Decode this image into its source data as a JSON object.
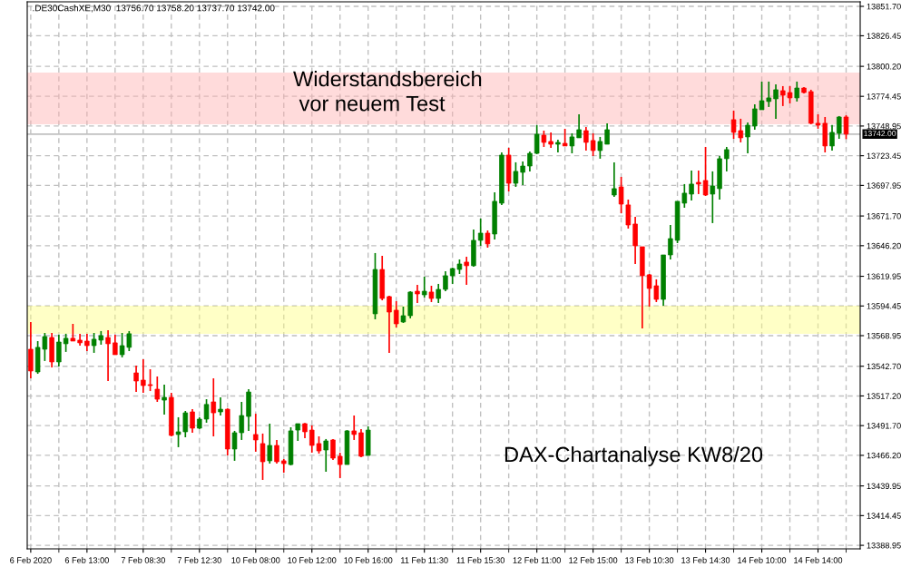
{
  "chart_data": {
    "type": "candlestick",
    "title": ".DE30CashXE,M30  13756.70 13758.20 13737.70 13742.00",
    "categories": [
      "6 Feb 2020",
      null,
      null,
      null,
      null,
      null,
      null,
      null,
      "6 Feb 13:00",
      null,
      null,
      null,
      null,
      null,
      null,
      null,
      "7 Feb 08:30",
      null,
      null,
      null,
      null,
      null,
      null,
      null,
      "7 Feb 12:30",
      null,
      null,
      null,
      null,
      null,
      null,
      null,
      "10 Feb 08:00",
      null,
      null,
      null,
      null,
      null,
      null,
      null,
      "10 Feb 12:00",
      null,
      null,
      null,
      null,
      null,
      null,
      null,
      "10 Feb 16:00",
      null,
      null,
      null,
      null,
      null,
      null,
      null,
      "11 Feb 11:30",
      null,
      null,
      null,
      null,
      null,
      null,
      null,
      "11 Feb 15:30",
      null,
      null,
      null,
      null,
      null,
      null,
      null,
      "12 Feb 11:00",
      null,
      null,
      null,
      null,
      null,
      null,
      null,
      "12 Feb 15:00",
      null,
      null,
      null,
      null,
      null,
      null,
      null,
      "13 Feb 10:30",
      null,
      null,
      null,
      null,
      null,
      null,
      null,
      "13 Feb 14:30",
      null,
      null,
      null,
      null,
      null,
      null,
      null,
      "14 Feb 10:00",
      null,
      null,
      null,
      null,
      null,
      null,
      null,
      "14 Feb 14:00",
      null,
      null,
      null,
      null
    ],
    "ohlc": [
      [
        13557.3,
        13580.7,
        13532.3,
        13538.6
      ],
      [
        13537.8,
        13564.3,
        13536.2,
        13558.9
      ],
      [
        13557.3,
        13571.3,
        13547.2,
        13568.2
      ],
      [
        13567.4,
        13571.3,
        13541.7,
        13546.4
      ],
      [
        13546.4,
        13569.8,
        13542.5,
        13563.5
      ],
      [
        13562.0,
        13570.6,
        13555.0,
        13566.7
      ],
      [
        13566.7,
        13579.1,
        13564.3,
        13564.3
      ],
      [
        13565.1,
        13570.6,
        13560.4,
        13562.8
      ],
      [
        13564.3,
        13570.6,
        13555.7,
        13560.4
      ],
      [
        13560.4,
        13571.3,
        13554.2,
        13565.9
      ],
      [
        13565.1,
        13572.9,
        13561.2,
        13569.0
      ],
      [
        13567.4,
        13573.7,
        13530.0,
        13562.0
      ],
      [
        13562.8,
        13569.8,
        13552.6,
        13552.6
      ],
      [
        13552.6,
        13571.3,
        13550.3,
        13560.4
      ],
      [
        13558.9,
        13572.9,
        13555.7,
        13570.6
      ],
      [
        13537.0,
        13543.3,
        13520.6,
        13530.0
      ],
      [
        13530.8,
        13548.7,
        13519.9,
        13526.1
      ],
      [
        13526.9,
        13540.1,
        13521.4,
        13526.1
      ],
      [
        13523.0,
        13533.9,
        13512.1,
        13514.4
      ],
      [
        13513.6,
        13526.9,
        13501.2,
        13516.0
      ],
      [
        13516.0,
        13519.9,
        13482.5,
        13483.3
      ],
      [
        13484.1,
        13498.9,
        13473.2,
        13486.4
      ],
      [
        13486.4,
        13504.3,
        13481.7,
        13502.7
      ],
      [
        13503.5,
        13505.8,
        13485.6,
        13489.5
      ],
      [
        13489.5,
        13498.9,
        13488.8,
        13497.3
      ],
      [
        13497.3,
        13514.4,
        13494.2,
        13509.9
      ],
      [
        13512.1,
        13532.3,
        13482.5,
        13502.7
      ],
      [
        13503.5,
        13516.0,
        13500.4,
        13505.8
      ],
      [
        13505.8,
        13506.5,
        13466.1,
        13471.6
      ],
      [
        13471.6,
        13487.2,
        13461.5,
        13485.6
      ],
      [
        13485.6,
        13512.1,
        13479.4,
        13500.4
      ],
      [
        13499.6,
        13523.0,
        13487.2,
        13520.6
      ],
      [
        13484.1,
        13501.9,
        13469.3,
        13479.4
      ],
      [
        13476.3,
        13484.9,
        13445.1,
        13460.7
      ],
      [
        13461.5,
        13493.4,
        13459.1,
        13474.7
      ],
      [
        13474.7,
        13479.4,
        13459.1,
        13460.7
      ],
      [
        13461.5,
        13463.0,
        13451.3,
        13459.1
      ],
      [
        13458.3,
        13490.3,
        13457.6,
        13487.2
      ],
      [
        13487.9,
        13493.4,
        13478.6,
        13493.4
      ],
      [
        13493.4,
        13494.0,
        13481.0,
        13486.4
      ],
      [
        13487.9,
        13491.9,
        13468.5,
        13474.7
      ],
      [
        13476.3,
        13482.5,
        13467.7,
        13470.0
      ],
      [
        13470.8,
        13480.2,
        13452.1,
        13478.6
      ],
      [
        13479.4,
        13480.2,
        13462.3,
        13463.8
      ],
      [
        13465.4,
        13468.5,
        13446.7,
        13458.3
      ],
      [
        13458.3,
        13487.9,
        13458.3,
        13487.2
      ],
      [
        13487.2,
        13500.4,
        13479.4,
        13484.1
      ],
      [
        13485.6,
        13488.8,
        13464.6,
        13465.4
      ],
      [
        13466.1,
        13491.1,
        13466.1,
        13487.9
      ],
      [
        13587.7,
        13639.9,
        13583.0,
        13625.8
      ],
      [
        13625.8,
        13637.5,
        13599.3,
        13600.9
      ],
      [
        13602.5,
        13603.3,
        13554.2,
        13589.2
      ],
      [
        13590.8,
        13598.6,
        13576.0,
        13579.1
      ],
      [
        13580.7,
        13593.9,
        13579.9,
        13586.1
      ],
      [
        13586.1,
        13607.1,
        13583.8,
        13606.4
      ],
      [
        13607.1,
        13612.6,
        13597.0,
        13604.8
      ],
      [
        13604.0,
        13619.6,
        13601.7,
        13607.1
      ],
      [
        13606.4,
        13611.8,
        13597.8,
        13600.9
      ],
      [
        13600.9,
        13613.4,
        13597.0,
        13608.7
      ],
      [
        13608.7,
        13624.3,
        13607.1,
        13620.4
      ],
      [
        13620.4,
        13627.4,
        13613.4,
        13626.6
      ],
      [
        13625.8,
        13634.4,
        13621.9,
        13630.5
      ],
      [
        13632.1,
        13636.7,
        13612.6,
        13629.0
      ],
      [
        13629.0,
        13660.1,
        13628.2,
        13650.8
      ],
      [
        13650.8,
        13669.5,
        13646.1,
        13657.0
      ],
      [
        13657.0,
        13659.3,
        13644.5,
        13647.7
      ],
      [
        13656.2,
        13692.0,
        13651.5,
        13684.3
      ],
      [
        13682.7,
        13726.3,
        13681.2,
        13724.0
      ],
      [
        13724.0,
        13730.2,
        13692.8,
        13699.8
      ],
      [
        13699.8,
        13717.8,
        13696.7,
        13710.0
      ],
      [
        13709.2,
        13718.5,
        13698.3,
        13714.6
      ],
      [
        13714.6,
        13727.1,
        13710.0,
        13725.5
      ],
      [
        13725.5,
        13749.7,
        13724.8,
        13741.9
      ],
      [
        13741.1,
        13745.0,
        13731.0,
        13734.9
      ],
      [
        13735.7,
        13743.5,
        13730.2,
        13733.3
      ],
      [
        13733.3,
        13737.2,
        13726.3,
        13734.9
      ],
      [
        13734.1,
        13746.6,
        13731.8,
        13731.8
      ],
      [
        13731.8,
        13742.7,
        13725.5,
        13739.6
      ],
      [
        13738.8,
        13759.0,
        13738.8,
        13745.8
      ],
      [
        13745.0,
        13748.1,
        13727.9,
        13734.9
      ],
      [
        13736.5,
        13742.7,
        13723.2,
        13727.9
      ],
      [
        13727.9,
        13739.6,
        13720.9,
        13735.7
      ],
      [
        13733.3,
        13751.3,
        13733.3,
        13745.8
      ],
      [
        13689.7,
        13717.8,
        13688.2,
        13695.2
      ],
      [
        13696.7,
        13705.3,
        13674.1,
        13681.9
      ],
      [
        13681.2,
        13685.8,
        13660.9,
        13664.0
      ],
      [
        13664.8,
        13671.0,
        13630.5,
        13646.1
      ],
      [
        13645.3,
        13645.3,
        13575.2,
        13620.4
      ],
      [
        13621.2,
        13621.9,
        13593.9,
        13609.5
      ],
      [
        13611.8,
        13617.3,
        13597.8,
        13600.1
      ],
      [
        13600.1,
        13638.3,
        13594.7,
        13638.3
      ],
      [
        13638.3,
        13664.0,
        13634.4,
        13652.3
      ],
      [
        13650.8,
        13684.3,
        13648.4,
        13684.3
      ],
      [
        13682.7,
        13699.1,
        13678.8,
        13691.3
      ],
      [
        13690.5,
        13710.7,
        13685.0,
        13699.1
      ],
      [
        13700.6,
        13710.7,
        13690.5,
        13699.1
      ],
      [
        13702.2,
        13731.0,
        13688.9,
        13689.7
      ],
      [
        13690.5,
        13710.0,
        13665.6,
        13697.5
      ],
      [
        13695.2,
        13723.2,
        13685.8,
        13720.9
      ],
      [
        13720.9,
        13731.0,
        13710.0,
        13728.7
      ],
      [
        13754.4,
        13762.2,
        13738.0,
        13743.5
      ],
      [
        13745.0,
        13755.2,
        13734.9,
        13738.8
      ],
      [
        13739.6,
        13752.0,
        13725.5,
        13749.7
      ],
      [
        13748.9,
        13767.6,
        13745.8,
        13763.7
      ],
      [
        13762.9,
        13787.1,
        13762.9,
        13770.7
      ],
      [
        13770.0,
        13787.1,
        13765.3,
        13773.1
      ],
      [
        13772.3,
        13784.8,
        13755.2,
        13780.1
      ],
      [
        13779.3,
        13783.2,
        13766.1,
        13775.4
      ],
      [
        13777.7,
        13783.2,
        13768.4,
        13773.1
      ],
      [
        13773.1,
        13787.1,
        13770.0,
        13781.6
      ],
      [
        13781.6,
        13782.4,
        13776.9,
        13777.7
      ],
      [
        13778.5,
        13780.1,
        13750.5,
        13751.3
      ],
      [
        13751.3,
        13759.0,
        13746.6,
        13749.7
      ],
      [
        13751.3,
        13756.7,
        13726.3,
        13731.8
      ],
      [
        13731.8,
        13749.8,
        13727.9,
        13743.5
      ],
      [
        13742.7,
        13757.5,
        13738.0,
        13756.7
      ],
      [
        13756.7,
        13758.2,
        13737.7,
        13742.0
      ]
    ],
    "colors": [
      "#ff0000",
      "#008000",
      "#008000",
      "#ff0000",
      "#008000",
      "#008000",
      "#ff0000",
      "#ff0000",
      "#ff0000",
      "#008000",
      "#008000",
      "#ff0000",
      "#ff0000",
      "#008000",
      "#008000",
      "#ff0000",
      "#ff0000",
      "#ff0000",
      "#ff0000",
      "#008000",
      "#ff0000",
      "#008000",
      "#008000",
      "#ff0000",
      "#008000",
      "#008000",
      "#ff0000",
      "#008000",
      "#ff0000",
      "#008000",
      "#008000",
      "#008000",
      "#ff0000",
      "#ff0000",
      "#008000",
      "#ff0000",
      "#ff0000",
      "#008000",
      "#008000",
      "#ff0000",
      "#ff0000",
      "#ff0000",
      "#008000",
      "#ff0000",
      "#ff0000",
      "#008000",
      "#ff0000",
      "#ff0000",
      "#008000",
      "#008000",
      "#ff0000",
      "#ff0000",
      "#ff0000",
      "#008000",
      "#008000",
      "#ff0000",
      "#008000",
      "#ff0000",
      "#008000",
      "#008000",
      "#008000",
      "#008000",
      "#ff0000",
      "#008000",
      "#008000",
      "#ff0000",
      "#008000",
      "#008000",
      "#ff0000",
      "#008000",
      "#008000",
      "#008000",
      "#008000",
      "#ff0000",
      "#ff0000",
      "#008000",
      "#ff0000",
      "#008000",
      "#008000",
      "#ff0000",
      "#ff0000",
      "#008000",
      "#008000",
      "#008000",
      "#ff0000",
      "#ff0000",
      "#ff0000",
      "#ff0000",
      "#ff0000",
      "#ff0000",
      "#008000",
      "#008000",
      "#008000",
      "#008000",
      "#008000",
      "#ff0000",
      "#ff0000",
      "#008000",
      "#008000",
      "#008000",
      "#ff0000",
      "#ff0000",
      "#008000",
      "#008000",
      "#008000",
      "#008000",
      "#008000",
      "#ff0000",
      "#ff0000",
      "#008000",
      "#ff0000",
      "#ff0000",
      "#ff0000",
      "#ff0000",
      "#008000",
      "#008000",
      "#ff0000"
    ],
    "ylim": [
      13385.9,
      13855.6
    ],
    "yticks": [
      {
        "value": 13388.95,
        "label": "13388.95"
      },
      {
        "value": 13414.45,
        "label": "13414.45"
      },
      {
        "value": 13439.95,
        "label": "13439.95"
      },
      {
        "value": 13466.2,
        "label": "13466.20"
      },
      {
        "value": 13491.7,
        "label": "13491.70"
      },
      {
        "value": 13517.2,
        "label": "13517.20"
      },
      {
        "value": 13542.7,
        "label": "13542.70"
      },
      {
        "value": 13568.95,
        "label": "13568.95"
      },
      {
        "value": 13594.45,
        "label": "13594.45"
      },
      {
        "value": 13619.95,
        "label": "13619.95"
      },
      {
        "value": 13646.2,
        "label": "13646.20"
      },
      {
        "value": 13671.7,
        "label": "13671.70"
      },
      {
        "value": 13697.95,
        "label": "13697.95"
      },
      {
        "value": 13723.45,
        "label": "13723.45"
      },
      {
        "value": 13748.95,
        "label": "13748.95"
      },
      {
        "value": 13774.45,
        "label": "13774.45"
      },
      {
        "value": 13800.2,
        "label": "13800.20"
      },
      {
        "value": 13826.45,
        "label": "13826.45"
      },
      {
        "value": 13851.7,
        "label": "13851.70"
      }
    ],
    "ref_lines": [
      {
        "axis": "y",
        "value": 13742.0,
        "label": "13742.00",
        "color": "#c0c0c0"
      }
    ],
    "bands": [
      {
        "axis": "y",
        "from": 13570.6,
        "to": 13594.7,
        "color": "#ffff80"
      },
      {
        "axis": "y",
        "from": 13750.5,
        "to": 13794.9,
        "color": "#ffb0b0"
      }
    ],
    "annotations": [
      "Widerstandsbereich\n vor neuem Test",
      "DAX-Chartanalyse KW8/20"
    ],
    "grid": true,
    "legend": false
  }
}
